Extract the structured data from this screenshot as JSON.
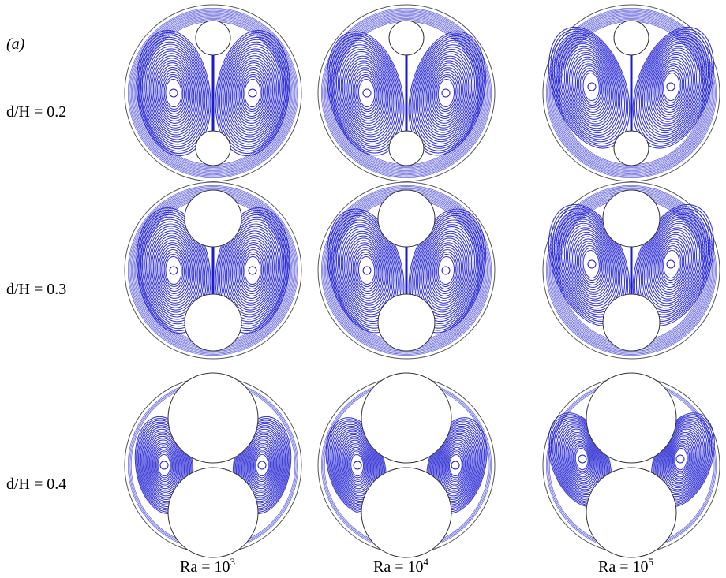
{
  "figure": {
    "panel_label": "(a)",
    "rows": [
      "d/H = 0.2",
      "d/H = 0.3",
      "d/H = 0.4"
    ],
    "columns": [
      {
        "base": "Ra = 10",
        "exp": "3"
      },
      {
        "base": "Ra = 10",
        "exp": "4"
      },
      {
        "base": "Ra = 10",
        "exp": "5"
      }
    ]
  }
}
